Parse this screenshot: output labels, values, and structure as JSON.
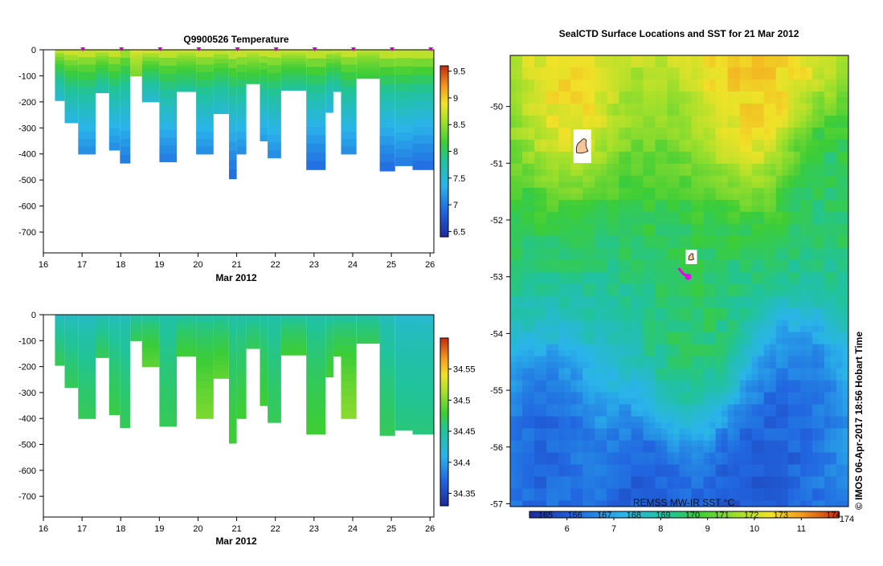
{
  "chart_data": [
    {
      "id": "temperature",
      "type": "heatmap",
      "title": "Q9900526  Temperature",
      "xlabel": "Mar 2012",
      "xlim": [
        16,
        26.1
      ],
      "ylim": [
        -780,
        0
      ],
      "xticks": [
        16,
        17,
        18,
        19,
        20,
        21,
        22,
        23,
        24,
        25,
        26
      ],
      "yticks": [
        0,
        -100,
        -200,
        -300,
        -400,
        -500,
        -600,
        -700
      ],
      "colorbar": {
        "min": 6.4,
        "max": 9.6,
        "ticks": [
          "6.5",
          "7",
          "7.5",
          "8",
          "8.5",
          "9",
          "9.5"
        ]
      },
      "profile_markers": [
        17,
        18,
        19,
        20,
        21,
        22,
        23,
        24,
        25,
        26
      ],
      "profiles": [
        {
          "x0": 16.3,
          "x1": 16.55,
          "depth": 195,
          "surface": 8.9,
          "bottom": 7.5
        },
        {
          "x0": 16.55,
          "x1": 16.9,
          "depth": 280,
          "surface": 9.0,
          "bottom": 7.4
        },
        {
          "x0": 16.9,
          "x1": 17.35,
          "depth": 400,
          "surface": 9.0,
          "bottom": 7.1
        },
        {
          "x0": 17.35,
          "x1": 17.7,
          "depth": 165,
          "surface": 8.9,
          "bottom": 7.7
        },
        {
          "x0": 17.7,
          "x1": 17.98,
          "depth": 385,
          "surface": 9.0,
          "bottom": 7.1
        },
        {
          "x0": 17.98,
          "x1": 18.25,
          "depth": 435,
          "surface": 8.8,
          "bottom": 7.0
        },
        {
          "x0": 18.25,
          "x1": 18.55,
          "depth": 100,
          "surface": 8.9,
          "bottom": 8.4
        },
        {
          "x0": 18.55,
          "x1": 19.0,
          "depth": 200,
          "surface": 9.0,
          "bottom": 7.5
        },
        {
          "x0": 19.0,
          "x1": 19.45,
          "depth": 430,
          "surface": 9.0,
          "bottom": 7.0
        },
        {
          "x0": 19.45,
          "x1": 19.95,
          "depth": 160,
          "surface": 8.9,
          "bottom": 7.8
        },
        {
          "x0": 19.95,
          "x1": 20.4,
          "depth": 400,
          "surface": 9.0,
          "bottom": 7.1
        },
        {
          "x0": 20.4,
          "x1": 20.8,
          "depth": 245,
          "surface": 8.9,
          "bottom": 7.5
        },
        {
          "x0": 20.8,
          "x1": 21.0,
          "depth": 495,
          "surface": 9.0,
          "bottom": 6.9
        },
        {
          "x0": 21.0,
          "x1": 21.25,
          "depth": 400,
          "surface": 9.0,
          "bottom": 7.1
        },
        {
          "x0": 21.25,
          "x1": 21.6,
          "depth": 130,
          "surface": 8.9,
          "bottom": 8.0
        },
        {
          "x0": 21.6,
          "x1": 21.8,
          "depth": 350,
          "surface": 9.0,
          "bottom": 7.2
        },
        {
          "x0": 21.8,
          "x1": 22.15,
          "depth": 415,
          "surface": 9.0,
          "bottom": 7.1
        },
        {
          "x0": 22.15,
          "x1": 22.8,
          "depth": 155,
          "surface": 8.9,
          "bottom": 7.8
        },
        {
          "x0": 22.8,
          "x1": 23.3,
          "depth": 460,
          "surface": 9.0,
          "bottom": 6.9
        },
        {
          "x0": 23.3,
          "x1": 23.5,
          "depth": 240,
          "surface": 8.9,
          "bottom": 7.4
        },
        {
          "x0": 23.5,
          "x1": 23.7,
          "depth": 160,
          "surface": 8.9,
          "bottom": 7.7
        },
        {
          "x0": 23.7,
          "x1": 24.1,
          "depth": 400,
          "surface": 9.0,
          "bottom": 7.1
        },
        {
          "x0": 24.1,
          "x1": 24.7,
          "depth": 110,
          "surface": 8.8,
          "bottom": 8.1
        },
        {
          "x0": 24.7,
          "x1": 25.1,
          "depth": 465,
          "surface": 9.0,
          "bottom": 6.9
        },
        {
          "x0": 25.1,
          "x1": 25.55,
          "depth": 445,
          "surface": 9.0,
          "bottom": 7.0
        },
        {
          "x0": 25.55,
          "x1": 26.1,
          "depth": 460,
          "surface": 9.0,
          "bottom": 6.9
        }
      ]
    },
    {
      "id": "salinity",
      "type": "heatmap",
      "title": "",
      "xlabel": "Mar 2012",
      "xlim": [
        16,
        26.1
      ],
      "ylim": [
        -780,
        0
      ],
      "xticks": [
        16,
        17,
        18,
        19,
        20,
        21,
        22,
        23,
        24,
        25,
        26
      ],
      "yticks": [
        0,
        -100,
        -200,
        -300,
        -400,
        -500,
        -600,
        -700
      ],
      "colorbar": {
        "min": 34.33,
        "max": 34.6,
        "ticks": [
          "34.35",
          "34.4",
          "34.45",
          "34.5",
          "34.55"
        ]
      },
      "profiles": [
        {
          "x0": 16.3,
          "x1": 16.55,
          "depth": 195,
          "surface": 34.425,
          "bottom": 34.47
        },
        {
          "x0": 16.55,
          "x1": 16.9,
          "depth": 280,
          "surface": 34.425,
          "bottom": 34.47
        },
        {
          "x0": 16.9,
          "x1": 17.35,
          "depth": 400,
          "surface": 34.425,
          "bottom": 34.47
        },
        {
          "x0": 17.35,
          "x1": 17.7,
          "depth": 165,
          "surface": 34.43,
          "bottom": 34.47
        },
        {
          "x0": 17.7,
          "x1": 17.98,
          "depth": 385,
          "surface": 34.43,
          "bottom": 34.475
        },
        {
          "x0": 17.98,
          "x1": 18.25,
          "depth": 435,
          "surface": 34.43,
          "bottom": 34.47
        },
        {
          "x0": 18.25,
          "x1": 18.55,
          "depth": 100,
          "surface": 34.44,
          "bottom": 34.47
        },
        {
          "x0": 18.55,
          "x1": 19.0,
          "depth": 200,
          "surface": 34.44,
          "bottom": 34.49
        },
        {
          "x0": 19.0,
          "x1": 19.45,
          "depth": 430,
          "surface": 34.44,
          "bottom": 34.47
        },
        {
          "x0": 19.45,
          "x1": 19.95,
          "depth": 160,
          "surface": 34.44,
          "bottom": 34.48
        },
        {
          "x0": 19.95,
          "x1": 20.4,
          "depth": 400,
          "surface": 34.44,
          "bottom": 34.5
        },
        {
          "x0": 20.4,
          "x1": 20.8,
          "depth": 245,
          "surface": 34.44,
          "bottom": 34.49
        },
        {
          "x0": 20.8,
          "x1": 21.0,
          "depth": 495,
          "surface": 34.44,
          "bottom": 34.48
        },
        {
          "x0": 21.0,
          "x1": 21.25,
          "depth": 400,
          "surface": 34.44,
          "bottom": 34.48
        },
        {
          "x0": 21.25,
          "x1": 21.6,
          "depth": 130,
          "surface": 34.44,
          "bottom": 34.47
        },
        {
          "x0": 21.6,
          "x1": 21.8,
          "depth": 350,
          "surface": 34.44,
          "bottom": 34.48
        },
        {
          "x0": 21.8,
          "x1": 22.15,
          "depth": 415,
          "surface": 34.44,
          "bottom": 34.47
        },
        {
          "x0": 22.15,
          "x1": 22.8,
          "depth": 155,
          "surface": 34.44,
          "bottom": 34.48
        },
        {
          "x0": 22.8,
          "x1": 23.3,
          "depth": 460,
          "surface": 34.44,
          "bottom": 34.48
        },
        {
          "x0": 23.3,
          "x1": 23.5,
          "depth": 240,
          "surface": 34.44,
          "bottom": 34.48
        },
        {
          "x0": 23.5,
          "x1": 23.7,
          "depth": 160,
          "surface": 34.44,
          "bottom": 34.48
        },
        {
          "x0": 23.7,
          "x1": 24.1,
          "depth": 400,
          "surface": 34.44,
          "bottom": 34.505
        },
        {
          "x0": 24.1,
          "x1": 24.7,
          "depth": 110,
          "surface": 34.44,
          "bottom": 34.47
        },
        {
          "x0": 24.7,
          "x1": 25.1,
          "depth": 465,
          "surface": 34.43,
          "bottom": 34.47
        },
        {
          "x0": 25.1,
          "x1": 25.55,
          "depth": 445,
          "surface": 34.42,
          "bottom": 34.46
        },
        {
          "x0": 25.55,
          "x1": 26.1,
          "depth": 460,
          "surface": 34.42,
          "bottom": 34.46
        }
      ]
    },
    {
      "id": "sst_map",
      "type": "heatmap",
      "title": "SealCTD Surface Locations and SST for 21 Mar 2012",
      "ylim": [
        -57.05,
        -49.1
      ],
      "xlim": [
        163.45,
        174.0
      ],
      "yticks": [
        -50,
        -51,
        -52,
        -53,
        -54,
        -55,
        -56,
        -57
      ],
      "colorbar_label": "REMSS MW-IR SST °C",
      "colorbar": {
        "lon_ticks": [
          "165",
          "166",
          "167",
          "168",
          "169",
          "170",
          "171",
          "172",
          "173",
          "174"
        ],
        "sst_ticks": [
          "6",
          "7",
          "8",
          "9",
          "10",
          "11"
        ],
        "sst_range": [
          5.2,
          11.8
        ]
      },
      "seal_icons": [
        {
          "lon": 165.7,
          "lat": -50.7
        },
        {
          "lon": 169.1,
          "lat": -52.65
        }
      ],
      "track": [
        {
          "lon": 168.7,
          "lat": -52.85
        },
        {
          "lon": 168.85,
          "lat": -52.95
        },
        {
          "lon": 169.0,
          "lat": -53.0
        }
      ],
      "sst_field": {
        "centers": [
          {
            "lon": 165.3,
            "lat": -49.9,
            "v": 10.6,
            "r": 1.0
          },
          {
            "lon": 171.2,
            "lat": -49.5,
            "v": 10.8,
            "r": 1.4
          },
          {
            "lon": 164.5,
            "lat": -55.7,
            "v": 5.9,
            "r": 1.1
          },
          {
            "lon": 167.6,
            "lat": -56.8,
            "v": 5.9,
            "r": 1.2
          },
          {
            "lon": 171.0,
            "lat": -56.5,
            "v": 5.7,
            "r": 1.3
          },
          {
            "lon": 172.4,
            "lat": -55.2,
            "v": 6.0,
            "r": 1.1
          },
          {
            "lon": 169.2,
            "lat": -54.1,
            "v": 8.7,
            "r": 1.3
          },
          {
            "lon": 173.2,
            "lat": -51.2,
            "v": 8.3,
            "r": 1.0
          }
        ]
      }
    }
  ],
  "footer": {
    "credit": "©  IMOS 06-Apr-2017 18:56 Hobart Time"
  },
  "colors": {
    "background": "#ffffff",
    "track": "#ee00ee",
    "marker": "#cc00cc"
  },
  "icons": [
    "seal-icon",
    "copyright-icon"
  ]
}
